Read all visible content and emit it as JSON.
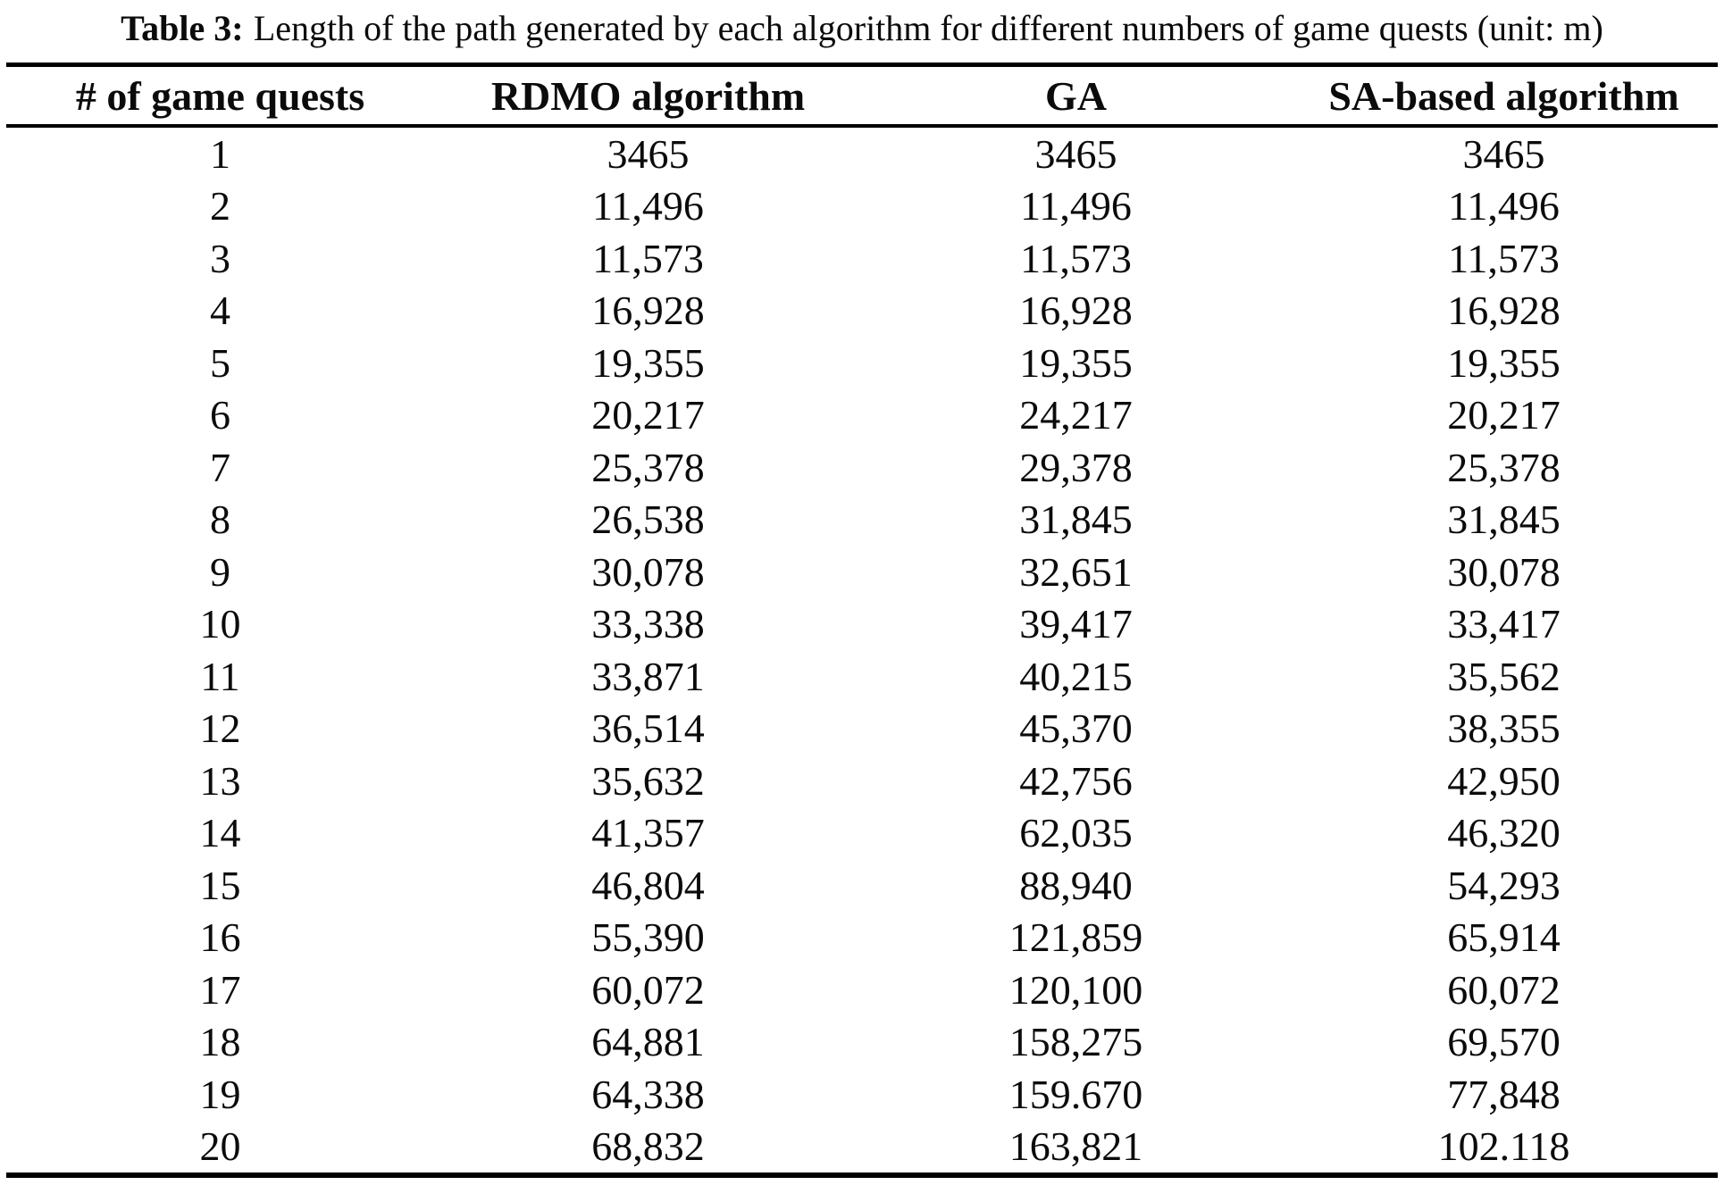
{
  "title": {
    "label": "Table 3:",
    "text": "Length of the path generated by each algorithm for different numbers of game quests (unit: m)"
  },
  "table": {
    "columns": [
      "# of game quests",
      "RDMO algorithm",
      "GA",
      "SA-based algorithm"
    ],
    "rows": [
      [
        "1",
        "3465",
        "3465",
        "3465"
      ],
      [
        "2",
        "11,496",
        "11,496",
        "11,496"
      ],
      [
        "3",
        "11,573",
        "11,573",
        "11,573"
      ],
      [
        "4",
        "16,928",
        "16,928",
        "16,928"
      ],
      [
        "5",
        "19,355",
        "19,355",
        "19,355"
      ],
      [
        "6",
        "20,217",
        "24,217",
        "20,217"
      ],
      [
        "7",
        "25,378",
        "29,378",
        "25,378"
      ],
      [
        "8",
        "26,538",
        "31,845",
        "31,845"
      ],
      [
        "9",
        "30,078",
        "32,651",
        "30,078"
      ],
      [
        "10",
        "33,338",
        "39,417",
        "33,417"
      ],
      [
        "11",
        "33,871",
        "40,215",
        "35,562"
      ],
      [
        "12",
        "36,514",
        "45,370",
        "38,355"
      ],
      [
        "13",
        "35,632",
        "42,756",
        "42,950"
      ],
      [
        "14",
        "41,357",
        "62,035",
        "46,320"
      ],
      [
        "15",
        "46,804",
        "88,940",
        "54,293"
      ],
      [
        "16",
        "55,390",
        "121,859",
        "65,914"
      ],
      [
        "17",
        "60,072",
        "120,100",
        "60,072"
      ],
      [
        "18",
        "64,881",
        "158,275",
        "69,570"
      ],
      [
        "19",
        "64,338",
        "159.670",
        "77,848"
      ],
      [
        "20",
        "68,832",
        "163,821",
        "102.118"
      ]
    ]
  },
  "chart_data": {
    "type": "table",
    "title": "Table 3: Length of the path generated by each algorithm for different numbers of game quests (unit: m)",
    "columns": [
      "# of game quests",
      "RDMO algorithm",
      "GA",
      "SA-based algorithm"
    ],
    "categories": [
      1,
      2,
      3,
      4,
      5,
      6,
      7,
      8,
      9,
      10,
      11,
      12,
      13,
      14,
      15,
      16,
      17,
      18,
      19,
      20
    ],
    "series": [
      {
        "name": "RDMO algorithm",
        "values": [
          3465,
          11496,
          11573,
          16928,
          19355,
          20217,
          25378,
          26538,
          30078,
          33338,
          33871,
          36514,
          35632,
          41357,
          46804,
          55390,
          60072,
          64881,
          64338,
          68832
        ]
      },
      {
        "name": "GA",
        "values": [
          3465,
          11496,
          11573,
          16928,
          19355,
          24217,
          29378,
          31845,
          32651,
          39417,
          40215,
          45370,
          42756,
          62035,
          88940,
          121859,
          120100,
          158275,
          159.67,
          163821
        ]
      },
      {
        "name": "SA-based algorithm",
        "values": [
          3465,
          11496,
          11573,
          16928,
          19355,
          20217,
          25378,
          31845,
          30078,
          33417,
          35562,
          38355,
          42950,
          46320,
          54293,
          65914,
          60072,
          69570,
          77848,
          102.118
        ]
      }
    ],
    "unit": "m"
  }
}
